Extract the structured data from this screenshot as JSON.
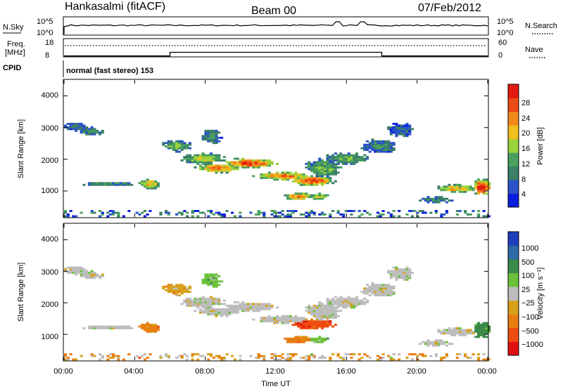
{
  "header": {
    "station": "Hankasalmi (fitACF)",
    "beam": "Beam 00",
    "date": "07/Feb/2012"
  },
  "strips": {
    "nsky_label": "N.Sky",
    "nsky_ticks": [
      "10^5",
      "10^0"
    ],
    "nsearch_label": "N.Search",
    "freq_label_line1": "Freq.",
    "freq_label_line2": "[MHz]",
    "freq_ticks": [
      "18",
      "8"
    ],
    "nave_label": "Nave",
    "nave_ticks": [
      "60",
      "0"
    ],
    "cpid_label": "CPID",
    "cpid_text": "normal (fast stereo) 153"
  },
  "panels": {
    "power": {
      "ylabel": "Slant Range [km]",
      "yticks": [
        "4000",
        "3000",
        "2000",
        "1000"
      ],
      "colorbar_label": "Power [dB]",
      "colorbar_ticks": [
        "28",
        "24",
        "20",
        "16",
        "12",
        "8",
        "4"
      ]
    },
    "velocity": {
      "ylabel": "Slant Range [km]",
      "yticks": [
        "4000",
        "3000",
        "2000",
        "1000"
      ],
      "colorbar_label": "Velocity [m s⁻¹]",
      "colorbar_ticks": [
        "1000",
        "500",
        "100",
        "25",
        "−25",
        "−100",
        "−500",
        "−1000"
      ]
    }
  },
  "xaxis": {
    "ticks": [
      "00:00",
      "04:00",
      "08:00",
      "12:00",
      "16:00",
      "20:00",
      "00:00"
    ],
    "label": "Time UT"
  },
  "colors": {
    "power_scale": [
      "#0b1de0",
      "#2a52c9",
      "#3a7f6a",
      "#49a05e",
      "#9ad23a",
      "#f0c020",
      "#f28a1a",
      "#ec4a16",
      "#e31a10"
    ],
    "velocity_scale": [
      "#1f3fbf",
      "#2e6aa8",
      "#3b8a4a",
      "#6bc23a",
      "#bdbdbd",
      "#d8a01a",
      "#e87d12",
      "#ef4c10",
      "#e01010"
    ]
  },
  "chart_data": {
    "type": "heatmap",
    "x_range": [
      "00:00",
      "24:00"
    ],
    "y_range_km": [
      180,
      4500
    ],
    "power_scale_db": [
      0,
      32
    ],
    "velocity_scale_ms": [
      -1000,
      1000
    ],
    "frequency_mhz": {
      "times": [
        "00:00",
        "06:00",
        "18:00",
        "24:00"
      ],
      "values": [
        8.5,
        10.5,
        8.5,
        8.5
      ]
    }
  }
}
